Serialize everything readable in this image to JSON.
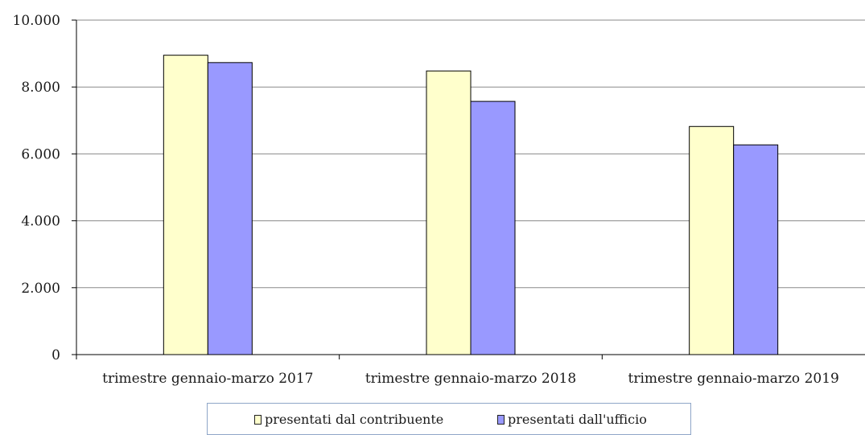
{
  "chart_data": {
    "type": "bar",
    "categories": [
      "trimestre gennaio-marzo 2017",
      "trimestre gennaio-marzo 2018",
      "trimestre gennaio-marzo 2019"
    ],
    "series": [
      {
        "name": "presentati dal contribuente",
        "color": "#ffffcc",
        "values": [
          8950,
          8480,
          6820
        ]
      },
      {
        "name": "presentati dall'ufficio",
        "color": "#9999ff",
        "values": [
          8730,
          7570,
          6270
        ]
      }
    ],
    "ylim": [
      0,
      10000
    ],
    "yticks": [
      0,
      2000,
      4000,
      6000,
      8000,
      10000
    ],
    "ytick_labels": [
      "0",
      "2.000",
      "4.000",
      "6.000",
      "8.000",
      "10.000"
    ],
    "grid": true,
    "legend_position": "bottom",
    "title": "",
    "xlabel": "",
    "ylabel": ""
  }
}
